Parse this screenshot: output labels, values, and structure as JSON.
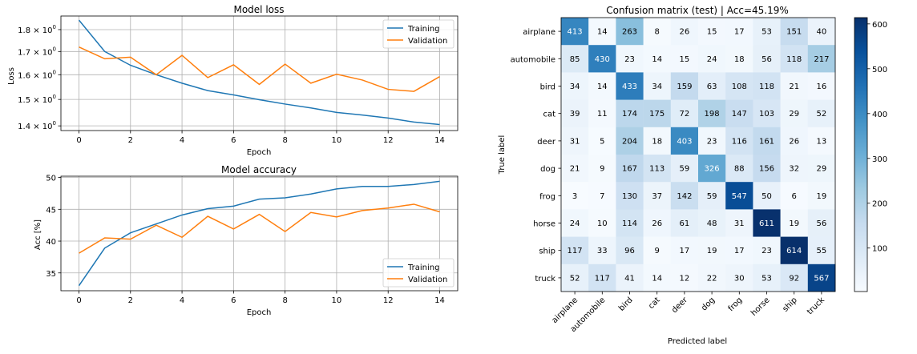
{
  "chart_data": [
    {
      "type": "line",
      "title": "Model loss",
      "xlabel": "Epoch",
      "ylabel": "Loss",
      "yscale": "log",
      "xlim": [
        -0.7,
        14.7
      ],
      "ylim": [
        1.383,
        1.865
      ],
      "xticks": [
        0,
        2,
        4,
        6,
        8,
        10,
        12,
        14
      ],
      "xtick_labels": [
        "0",
        "2",
        "4",
        "6",
        "8",
        "10",
        "12",
        "14"
      ],
      "yticks": [
        1.4,
        1.5,
        1.6,
        1.7,
        1.8
      ],
      "ytick_labels": [
        {
          "mant": "1.4",
          "exp": "0"
        },
        {
          "mant": "1.5",
          "exp": "0"
        },
        {
          "mant": "1.6",
          "exp": "0"
        },
        {
          "mant": "1.7",
          "exp": "0"
        },
        {
          "mant": "1.8",
          "exp": "0"
        }
      ],
      "grid": true,
      "legend_position": "top-right",
      "x": [
        0,
        1,
        2,
        3,
        4,
        5,
        6,
        7,
        8,
        9,
        10,
        11,
        12,
        13,
        14
      ],
      "series": [
        {
          "name": "Training",
          "color": "#1f77b4",
          "values": [
            1.845,
            1.7,
            1.64,
            1.6,
            1.565,
            1.535,
            1.518,
            1.499,
            1.482,
            1.467,
            1.45,
            1.44,
            1.429,
            1.414,
            1.405
          ]
        },
        {
          "name": "Validation",
          "color": "#ff7f0e",
          "values": [
            1.72,
            1.668,
            1.675,
            1.6,
            1.683,
            1.588,
            1.642,
            1.56,
            1.645,
            1.565,
            1.602,
            1.578,
            1.54,
            1.532,
            1.592
          ]
        }
      ]
    },
    {
      "type": "line",
      "title": "Model accuracy",
      "xlabel": "Epoch",
      "ylabel": "Acc [%]",
      "xlim": [
        -0.7,
        14.7
      ],
      "ylim": [
        32.2,
        50.2
      ],
      "xticks": [
        0,
        2,
        4,
        6,
        8,
        10,
        12,
        14
      ],
      "xtick_labels": [
        "0",
        "2",
        "4",
        "6",
        "8",
        "10",
        "12",
        "14"
      ],
      "yticks": [
        35,
        40,
        45,
        50
      ],
      "ytick_labels": [
        "35",
        "40",
        "45",
        "50"
      ],
      "grid": true,
      "legend_position": "bottom-right",
      "x": [
        0,
        1,
        2,
        3,
        4,
        5,
        6,
        7,
        8,
        9,
        10,
        11,
        12,
        13,
        14
      ],
      "series": [
        {
          "name": "Training",
          "color": "#1f77b4",
          "values": [
            33.0,
            38.9,
            41.3,
            42.7,
            44.1,
            45.1,
            45.5,
            46.6,
            46.8,
            47.4,
            48.2,
            48.6,
            48.6,
            48.9,
            49.4
          ]
        },
        {
          "name": "Validation",
          "color": "#ff7f0e",
          "values": [
            38.1,
            40.5,
            40.3,
            42.5,
            40.6,
            43.9,
            41.9,
            44.2,
            41.5,
            44.5,
            43.8,
            44.8,
            45.2,
            45.8,
            44.6
          ]
        }
      ]
    },
    {
      "type": "heatmap",
      "title": "Confusion matrix (test) | Acc=45.19%",
      "xlabel": "Predicted label",
      "ylabel": "True label",
      "labels": [
        "airplane",
        "automobile",
        "bird",
        "cat",
        "deer",
        "dog",
        "frog",
        "horse",
        "ship",
        "truck"
      ],
      "colormap": "Blues",
      "vmin": 3,
      "vmax": 614,
      "colorbar_ticks": [
        100,
        200,
        300,
        400,
        500,
        600
      ],
      "colorbar_tick_labels": [
        "100",
        "200",
        "300",
        "400",
        "500",
        "600"
      ],
      "matrix": [
        [
          413,
          14,
          263,
          8,
          26,
          15,
          17,
          53,
          151,
          40
        ],
        [
          85,
          430,
          23,
          14,
          15,
          24,
          18,
          56,
          118,
          217
        ],
        [
          34,
          14,
          433,
          34,
          159,
          63,
          108,
          118,
          21,
          16
        ],
        [
          39,
          11,
          174,
          175,
          72,
          198,
          147,
          103,
          29,
          52
        ],
        [
          31,
          5,
          204,
          18,
          403,
          23,
          116,
          161,
          26,
          13
        ],
        [
          21,
          9,
          167,
          113,
          59,
          326,
          88,
          156,
          32,
          29
        ],
        [
          3,
          7,
          130,
          37,
          142,
          59,
          547,
          50,
          6,
          19
        ],
        [
          24,
          10,
          114,
          26,
          61,
          48,
          31,
          611,
          19,
          56
        ],
        [
          117,
          33,
          96,
          9,
          17,
          19,
          17,
          23,
          614,
          55
        ],
        [
          52,
          117,
          41,
          14,
          12,
          22,
          30,
          53,
          92,
          567
        ]
      ]
    }
  ]
}
